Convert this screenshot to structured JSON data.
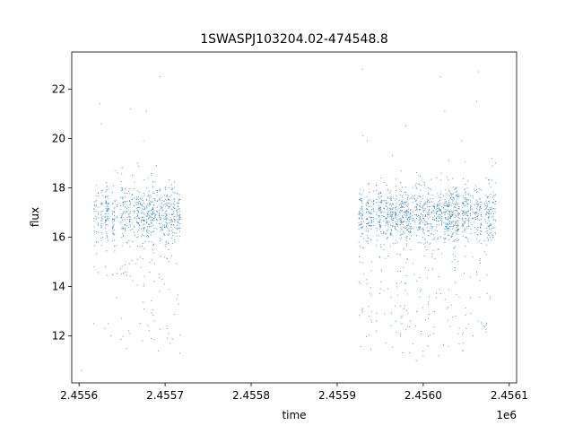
{
  "chart_data": {
    "type": "scatter",
    "title": "1SWASPJ103204.02-474548.8",
    "xlabel": "time",
    "ylabel": "flux",
    "x_offset_label": "1e6",
    "xlim": [
      2455591.5,
      2456108.5
    ],
    "ylim": [
      10.1,
      23.5
    ],
    "x_ticks": [
      2455600,
      2455700,
      2455800,
      2455900,
      2456000,
      2456100
    ],
    "x_tick_labels": [
      "2.4556",
      "2.4557",
      "2.4558",
      "2.4559",
      "2.4560",
      "2.4561"
    ],
    "y_ticks": [
      12,
      14,
      16,
      18,
      20,
      22
    ],
    "y_tick_labels": [
      "12",
      "14",
      "16",
      "18",
      "20",
      "22"
    ],
    "grid": false,
    "colors": {
      "points": "#1f77b4"
    },
    "series": [
      {
        "observing_windows": [
          {
            "x_start": 2455617,
            "x_end": 2455717,
            "median_flux": 16.9,
            "spread": 0.6,
            "low_tail_min": 11.8
          },
          {
            "x_start": 2455925,
            "x_end": 2456084,
            "median_flux": 16.9,
            "spread": 0.6,
            "low_tail_min": 11.3
          }
        ],
        "points": [
          [
            2455617,
            12.5
          ],
          [
            2455618,
            17.3
          ],
          [
            2455620,
            17.5
          ],
          [
            2455624,
            21.4
          ],
          [
            2455626,
            20.6
          ],
          [
            2455630,
            12.3
          ],
          [
            2455637,
            12.0
          ],
          [
            2455645,
            18.6
          ],
          [
            2455650,
            18.8
          ],
          [
            2455655,
            11.5
          ],
          [
            2455660,
            21.2
          ],
          [
            2455668,
            19.0
          ],
          [
            2455675,
            19.9
          ],
          [
            2455678,
            21.1
          ],
          [
            2455684,
            11.9
          ],
          [
            2455690,
            18.9
          ],
          [
            2455692,
            11.4
          ],
          [
            2455694,
            22.5
          ],
          [
            2455706,
            11.7
          ],
          [
            2455717,
            11.3
          ],
          [
            2455603,
            10.6
          ],
          [
            2455929,
            22.8
          ],
          [
            2455930,
            20.1
          ],
          [
            2455935,
            19.9
          ],
          [
            2455937,
            12.8
          ],
          [
            2455940,
            13.0
          ],
          [
            2455955,
            12.9
          ],
          [
            2455964,
            19.3
          ],
          [
            2455975,
            12.5
          ],
          [
            2455980,
            20.5
          ],
          [
            2455985,
            12.6
          ],
          [
            2455992,
            11.0
          ],
          [
            2456000,
            11.2
          ],
          [
            2456012,
            12.1
          ],
          [
            2456018,
            11.2
          ],
          [
            2456020,
            22.5
          ],
          [
            2456025,
            21.1
          ],
          [
            2456030,
            19.1
          ],
          [
            2456045,
            19.9
          ],
          [
            2456050,
            12.3
          ],
          [
            2456058,
            12.0
          ],
          [
            2456062,
            21.5
          ],
          [
            2456064,
            22.7
          ],
          [
            2456070,
            12.4
          ],
          [
            2456080,
            19.2
          ],
          [
            2456084,
            19.0
          ]
        ]
      }
    ]
  }
}
